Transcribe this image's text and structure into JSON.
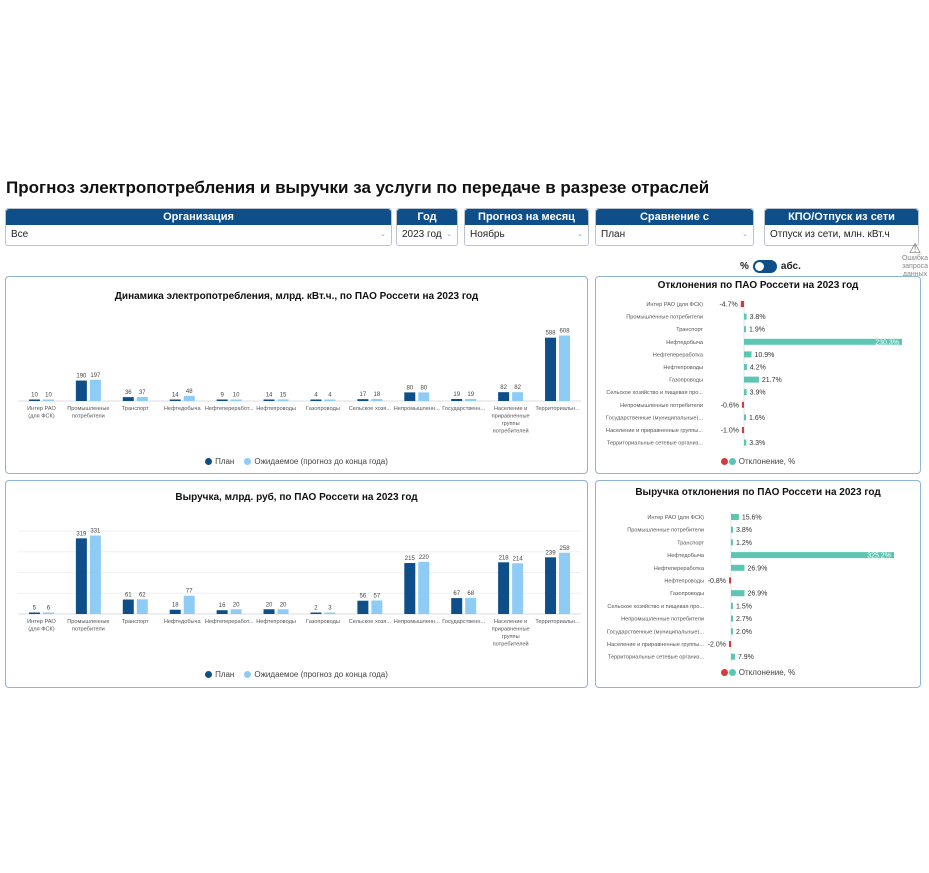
{
  "page": {
    "title": "Прогноз электропотребления и выручки за услуги по передаче в разрезе отраслей"
  },
  "filters": {
    "org": {
      "label": "Организация",
      "value": "Все"
    },
    "year": {
      "label": "Год",
      "value": "2023 год"
    },
    "month": {
      "label": "Прогноз на месяц",
      "value": "Ноябрь"
    },
    "compare": {
      "label": "Сравнение с",
      "value": "План"
    },
    "kpo": {
      "label": "КПО/Отпуск из сети",
      "value": "Отпуск из сети, млн. кВт.ч"
    }
  },
  "toggle": {
    "left": "%",
    "right": "абс."
  },
  "warning": {
    "text": "Ошибка запроса данных",
    "icon": "warning-icon"
  },
  "colors": {
    "plan": "#0e4f8a",
    "expected": "#8ecbf5",
    "neg": "#d63b3b",
    "pos": "#5cc6b3",
    "brand": "#0e4f8a"
  },
  "categories": [
    [
      "Интер РАО",
      "(для ФСК)"
    ],
    [
      "Промышленные",
      "потребители"
    ],
    [
      "Транспорт"
    ],
    [
      "Нефтедобыча"
    ],
    [
      "Нефтепереработ..."
    ],
    [
      "Нефтепроводы"
    ],
    [
      "Газопроводы"
    ],
    [
      "Сельское хозя..."
    ],
    [
      "Непромышленн..."
    ],
    [
      "Государственн..."
    ],
    [
      "Население и",
      "приравненные",
      "группы",
      "потребителей"
    ],
    [
      "Территориальн..."
    ]
  ],
  "legend_bars": {
    "plan": "План",
    "expected": "Ожидаемое (прогноз до конца года)"
  },
  "legend_dev": {
    "label": "Отклонение, %"
  },
  "chart_data": [
    {
      "type": "bar",
      "title": "Динамика электропотребления, млрд. кВт.ч., по ПАО Россети на 2023 год",
      "series": [
        {
          "name": "План",
          "values": [
            10,
            190,
            36,
            14,
            9,
            14,
            4,
            17,
            80,
            19,
            82,
            588
          ]
        },
        {
          "name": "Ожидаемое (прогноз до конца года)",
          "values": [
            10,
            197,
            37,
            48,
            10,
            15,
            4,
            18,
            80,
            19,
            82,
            608
          ]
        }
      ],
      "ylim": [
        0,
        650
      ]
    },
    {
      "type": "bar",
      "title": "Отклонения по ПАО Россети на 2023 год",
      "categories": [
        "Интер РАО (для ФСК)",
        "Промышленные потребители",
        "Транспорт",
        "Нефтедобыча",
        "Нефтепереработка",
        "Нефтепроводы",
        "Газопроводы",
        "Сельское хозяйство и пищевая про...",
        "Непромышленные потребители",
        "Государственные (муниципальные)...",
        "Население и приравненные группы...",
        "Территориальные сетевые организ..."
      ],
      "values": [
        -4.7,
        3.8,
        1.9,
        230.3,
        10.9,
        4.2,
        21.7,
        3.9,
        -0.6,
        1.6,
        -1.0,
        3.3
      ],
      "labels": [
        "-4.7%",
        "3.8%",
        "1.9%",
        "230.3%",
        "10.9%",
        "4.2%",
        "21.7%",
        "3.9%",
        "-0.6%",
        "1.6%",
        "-1.0%",
        "3.3%"
      ]
    },
    {
      "type": "bar",
      "title": "Выручка, млрд. руб, по ПАО Россети на 2023 год",
      "series": [
        {
          "name": "План",
          "values": [
            5,
            319,
            61,
            18,
            16,
            20,
            2,
            56,
            215,
            67,
            218,
            239
          ]
        },
        {
          "name": "Ожидаемое (прогноз до конца года)",
          "values": [
            6,
            331,
            62,
            77,
            20,
            20,
            3,
            57,
            220,
            68,
            214,
            258
          ]
        }
      ],
      "ylim": [
        0,
        350
      ]
    },
    {
      "type": "bar",
      "title": "Выручка отклонения по ПАО Россети на 2023 год",
      "categories": [
        "Интер РАО (для ФСК)",
        "Промышленные потребители",
        "Транспорт",
        "Нефтедобыча",
        "Нефтепереработка",
        "Нефтепроводы",
        "Газопроводы",
        "Сельское хозяйство и пищевая про...",
        "Непромышленные потребители",
        "Государственные (муниципальные)...",
        "Население и приравненные группы...",
        "Территориальные сетевые организ..."
      ],
      "values": [
        15.6,
        3.8,
        1.2,
        325.2,
        26.9,
        -0.8,
        26.9,
        1.5,
        2.7,
        2.0,
        -2.0,
        7.9
      ],
      "labels": [
        "15.6%",
        "3.8%",
        "1.2%",
        "325.2%",
        "26.9%",
        "-0.8%",
        "26.9%",
        "1.5%",
        "2.7%",
        "2.0%",
        "-2.0%",
        "7.9%"
      ]
    }
  ]
}
